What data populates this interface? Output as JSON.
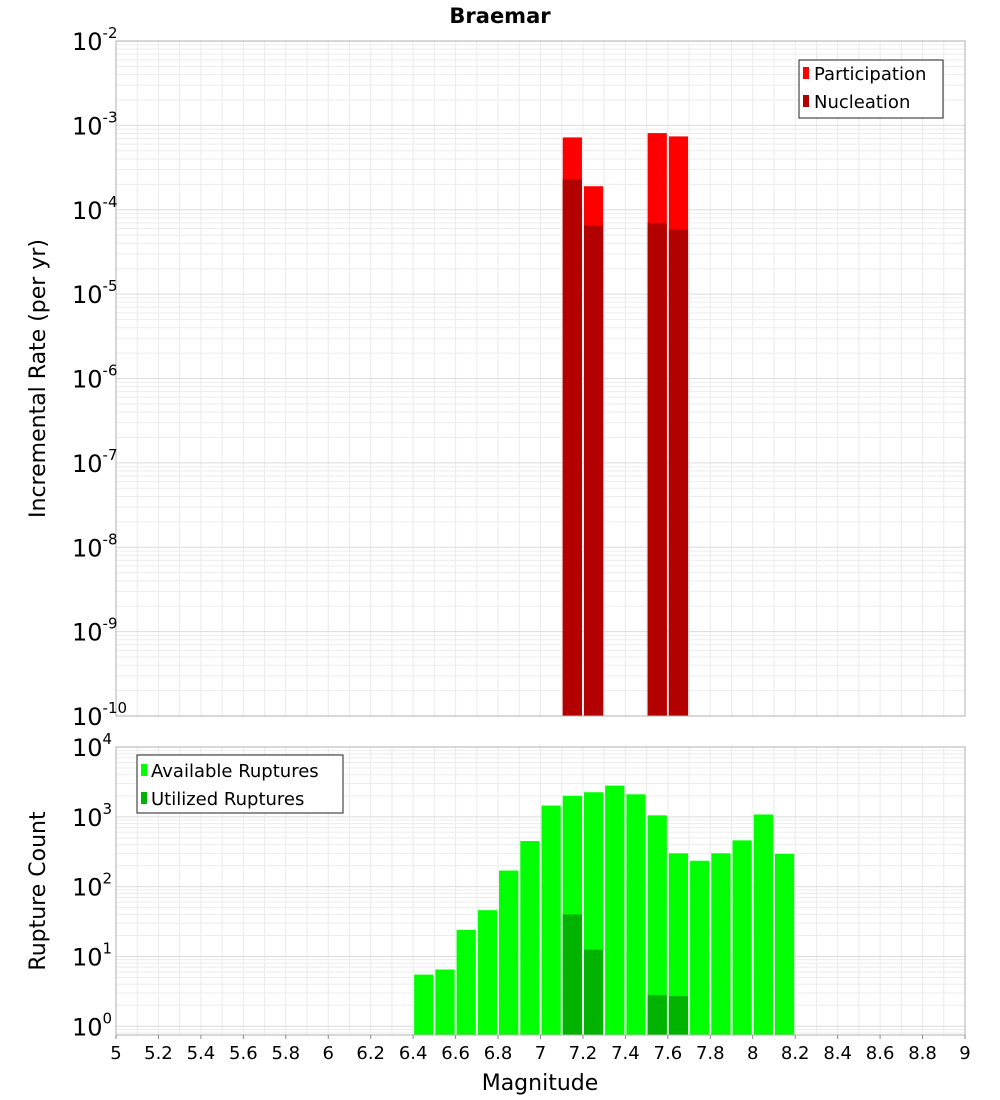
{
  "chart_data": [
    {
      "type": "bar",
      "title": "Braemar",
      "xlabel": "",
      "ylabel": "Incremental Rate (per yr)",
      "y_scale": "log",
      "xlim": [
        5,
        9
      ],
      "ylim": [
        1e-10,
        0.01
      ],
      "y_ticks": [
        {
          "base": "10",
          "exp": "-2",
          "value": 0.01
        },
        {
          "base": "10",
          "exp": "-3",
          "value": 0.001
        },
        {
          "base": "10",
          "exp": "-4",
          "value": 0.0001
        },
        {
          "base": "10",
          "exp": "-5",
          "value": 1e-05
        },
        {
          "base": "10",
          "exp": "-6",
          "value": 1e-06
        },
        {
          "base": "10",
          "exp": "-7",
          "value": 1e-07
        },
        {
          "base": "10",
          "exp": "-8",
          "value": 1e-08
        },
        {
          "base": "10",
          "exp": "-9",
          "value": 1e-09
        },
        {
          "base": "10",
          "exp": "-10",
          "value": 1e-10
        }
      ],
      "grid": true,
      "legend_position": "top-right",
      "bar_width": 0.1,
      "series": [
        {
          "name": "Participation",
          "color": "#ff0000",
          "x": [
            7.15,
            7.25,
            7.55,
            7.65
          ],
          "values": [
            0.00072,
            0.00019,
            0.00081,
            0.00074
          ]
        },
        {
          "name": "Nucleation",
          "color": "#b30000",
          "x": [
            7.15,
            7.25,
            7.55,
            7.65
          ],
          "values": [
            0.00023,
            6.5e-05,
            7e-05,
            5.8e-05
          ]
        }
      ]
    },
    {
      "type": "bar",
      "title": "",
      "xlabel": "Magnitude",
      "ylabel": "Rupture Count",
      "y_scale": "log",
      "xlim": [
        5,
        9
      ],
      "ylim": [
        0.75,
        10000
      ],
      "y_ticks": [
        {
          "base": "10",
          "exp": "4",
          "value": 10000
        },
        {
          "base": "10",
          "exp": "3",
          "value": 1000
        },
        {
          "base": "10",
          "exp": "2",
          "value": 100
        },
        {
          "base": "10",
          "exp": "1",
          "value": 10
        },
        {
          "base": "10",
          "exp": "0",
          "value": 1
        }
      ],
      "x_ticks": [
        "5",
        "5.2",
        "5.4",
        "5.6",
        "5.8",
        "6",
        "6.2",
        "6.4",
        "6.6",
        "6.8",
        "7",
        "7.2",
        "7.4",
        "7.6",
        "7.8",
        "8",
        "8.2",
        "8.4",
        "8.6",
        "8.8",
        "9"
      ],
      "grid": true,
      "legend_position": "top-left",
      "bar_width": 0.1,
      "series": [
        {
          "name": "Available Ruptures",
          "color": "#00ff00",
          "x": [
            6.45,
            6.55,
            6.65,
            6.75,
            6.85,
            6.95,
            7.05,
            7.15,
            7.25,
            7.35,
            7.45,
            7.55,
            7.65,
            7.75,
            7.85,
            7.95,
            8.05,
            8.15
          ],
          "values": [
            5.5,
            6.5,
            24,
            46,
            170,
            450,
            1450,
            2000,
            2250,
            2800,
            2100,
            1050,
            300,
            235,
            300,
            460,
            1080,
            295
          ]
        },
        {
          "name": "Utilized Ruptures",
          "color": "#00b300",
          "x": [
            7.15,
            7.25,
            7.55,
            7.65
          ],
          "values": [
            40,
            12.5,
            2.8,
            2.7
          ]
        }
      ]
    }
  ]
}
